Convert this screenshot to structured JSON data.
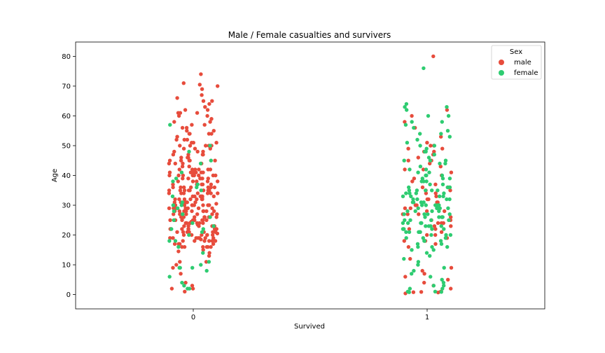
{
  "chart_data": {
    "type": "scatter",
    "title": "Male / Female casualties and survivers",
    "xlabel": "Survived",
    "ylabel": "Age",
    "categories": [
      "0",
      "1"
    ],
    "ylim": [
      -4.8,
      84.8
    ],
    "yticks": [
      "0",
      "10",
      "20",
      "30",
      "40",
      "50",
      "60",
      "70",
      "80"
    ],
    "grid": false,
    "legend": {
      "title": "Sex",
      "placement": "top-right"
    },
    "series": [
      {
        "name": "male",
        "color": "#e74c3c",
        "groups": [
          {
            "category": "0",
            "ages": [
              74,
              71,
              70.5,
              70,
              69,
              67,
              66,
              65,
              65,
              64,
              63,
              62,
              62,
              61,
              61,
              61,
              60,
              60,
              59,
              58,
              58,
              57,
              57,
              56,
              56,
              55,
              55,
              54,
              54,
              54,
              54,
              53,
              52,
              52,
              52,
              51,
              51,
              51,
              50,
              50,
              50,
              50,
              50,
              49,
              49,
              49,
              48,
              48,
              48,
              47,
              47,
              47,
              47,
              46,
              46,
              46,
              45,
              45,
              45,
              45,
              45,
              44,
              44,
              44,
              44,
              43,
              43,
              42,
              42,
              42,
              42,
              42,
              42,
              41,
              41,
              41,
              41,
              41,
              41,
              40,
              40,
              40,
              40,
              40,
              40,
              40,
              40,
              39,
              39,
              39,
              39,
              39,
              39,
              38,
              38,
              38,
              38,
              38,
              37,
              37,
              37,
              37,
              37,
              36,
              36,
              36,
              36,
              36,
              36,
              36,
              35,
              35,
              35,
              35,
              35,
              35,
              35,
              35,
              34,
              34,
              34,
              34,
              34,
              34,
              34,
              33,
              33,
              33,
              33,
              33,
              33,
              33,
              32.5,
              32,
              32,
              32,
              32,
              32,
              32,
              32,
              31,
              31,
              31,
              31,
              31,
              31,
              30.5,
              30,
              30,
              30,
              30,
              30,
              30,
              30,
              30,
              29,
              29,
              29,
              29,
              29,
              29,
              29,
              28.5,
              28,
              28,
              28,
              28,
              28,
              28,
              28,
              28,
              28,
              27,
              27,
              27,
              27,
              27,
              27,
              27,
              26,
              26,
              26,
              26,
              26,
              26,
              26,
              26,
              25,
              25,
              25,
              25,
              25,
              25,
              25,
              25,
              25,
              24.5,
              24,
              24,
              24,
              24,
              24,
              24,
              24,
              23.5,
              23,
              23,
              23,
              23,
              23,
              23,
              22,
              22,
              22,
              22,
              22,
              22,
              22,
              21,
              21,
              21,
              21,
              21,
              21,
              21,
              20.5,
              20,
              20,
              20,
              20,
              20,
              20,
              19,
              19,
              19,
              19,
              19,
              19,
              19,
              18.5,
              18,
              18,
              18,
              18,
              18,
              18,
              17,
              17,
              17,
              17,
              16,
              16,
              16,
              16,
              16,
              16,
              15,
              14.5,
              14,
              13,
              11,
              11,
              10,
              9,
              7,
              4,
              3,
              2,
              2,
              1
            ]
          },
          {
            "category": "1",
            "ages": [
              80,
              62,
              60,
              58,
              56,
              53,
              51,
              50,
              50,
              49,
              49,
              48,
              48,
              47,
              46,
              45,
              45,
              44,
              43,
              42,
              42,
              41,
              40,
              40,
              39,
              38,
              37,
              36,
              36,
              35,
              35,
              34,
              34,
              33,
              32,
              32,
              31,
              31,
              30,
              30,
              29,
              29,
              28,
              28,
              27,
              27,
              27,
              26,
              26,
              25,
              25,
              24,
              24,
              24,
              23,
              23,
              22,
              22,
              21,
              21,
              20,
              20,
              19,
              18,
              18,
              17,
              16,
              12,
              9,
              8,
              7,
              6,
              5,
              4,
              3,
              2,
              1,
              1,
              0.9,
              0.8,
              0.7,
              0.4
            ]
          }
        ]
      },
      {
        "name": "female",
        "color": "#2ecc71",
        "groups": [
          {
            "category": "0",
            "ages": [
              57,
              50,
              48,
              45,
              44,
              41,
              39,
              38,
              37,
              36,
              35,
              33,
              31,
              30,
              30,
              29,
              28,
              27,
              26,
              25,
              24,
              23,
              22,
              22,
              21,
              20,
              18,
              18,
              16,
              14,
              11,
              10,
              9,
              9,
              9,
              8,
              6,
              4,
              3,
              2,
              2
            ]
          },
          {
            "category": "1",
            "ages": [
              76,
              64,
              63,
              63,
              62,
              60,
              60,
              58,
              58,
              57,
              56,
              55,
              54,
              54,
              53,
              52,
              51,
              50,
              50,
              49,
              48,
              48,
              47,
              46,
              45,
              45,
              45,
              44,
              44,
              43,
              42,
              42,
              41,
              41,
              40,
              40,
              40,
              39,
              39,
              39,
              38,
              38,
              38,
              37,
              37,
              36,
              36,
              36,
              36,
              35,
              35,
              35,
              35,
              35,
              34,
              34,
              34,
              34,
              33,
              33,
              33,
              33,
              32,
              32,
              32,
              32,
              31,
              31,
              31,
              31,
              30,
              30,
              30,
              30,
              30,
              29,
              29,
              29,
              29,
              28,
              28,
              28,
              28,
              27,
              27,
              27,
              27,
              26,
              26,
              26,
              26,
              25,
              25,
              25,
              25,
              24,
              24,
              24,
              24,
              24,
              23,
              23,
              23,
              23,
              22,
              22,
              22,
              22,
              22,
              21,
              21,
              21,
              21,
              21,
              20,
              20,
              20,
              19,
              19,
              19,
              18,
              18,
              18,
              17,
              17,
              16,
              16,
              16,
              15,
              15,
              14,
              13,
              12,
              11,
              10,
              9,
              8,
              7,
              6,
              5,
              4,
              3,
              3,
              2,
              2,
              1,
              1,
              0.9,
              0.8
            ]
          }
        ]
      }
    ]
  }
}
